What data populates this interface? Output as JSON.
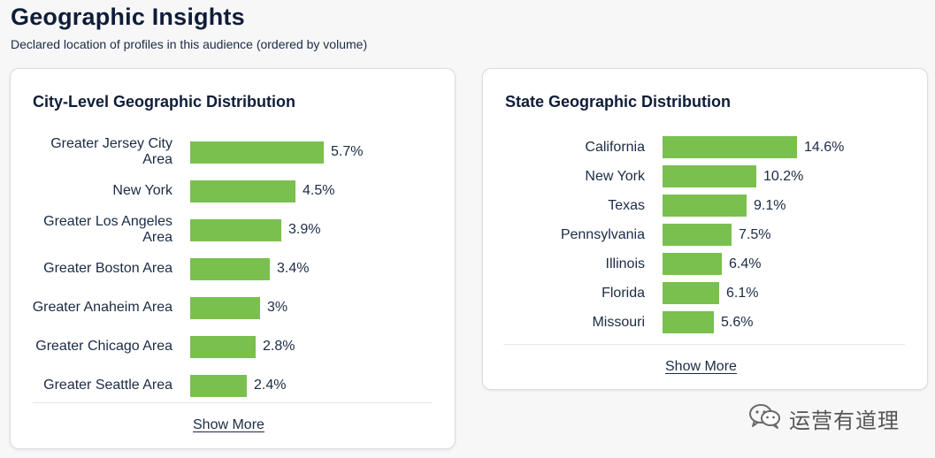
{
  "header": {
    "title": "Geographic Insights",
    "subtitle": "Declared location of profiles in this audience (ordered by volume)"
  },
  "city_card": {
    "title": "City-Level Geographic Distribution",
    "show_more": "Show More"
  },
  "state_card": {
    "title": "State Geographic Distribution",
    "show_more": "Show More"
  },
  "watermark": {
    "text": "运营有道理",
    "icon": "wechat-icon"
  },
  "colors": {
    "bar": "#79c04e",
    "title": "#0f1d38",
    "text": "#1b2b44"
  },
  "chart_data": [
    {
      "type": "bar",
      "orientation": "horizontal",
      "title": "City-Level Geographic Distribution",
      "categories": [
        "Greater Jersey City Area",
        "New York",
        "Greater Los Angeles Area",
        "Greater Boston Area",
        "Greater Anaheim Area",
        "Greater Chicago Area",
        "Greater Seattle Area"
      ],
      "values": [
        5.7,
        4.5,
        3.9,
        3.4,
        3,
        2.8,
        2.4
      ],
      "labels": [
        "5.7%",
        "4.5%",
        "3.9%",
        "3.4%",
        "3%",
        "2.8%",
        "2.4%"
      ],
      "grid": false
    },
    {
      "type": "bar",
      "orientation": "horizontal",
      "title": "State Geographic Distribution",
      "categories": [
        "California",
        "New York",
        "Texas",
        "Pennsylvania",
        "Illinois",
        "Florida",
        "Missouri"
      ],
      "values": [
        14.6,
        10.2,
        9.1,
        7.5,
        6.4,
        6.1,
        5.6
      ],
      "labels": [
        "14.6%",
        "10.2%",
        "9.1%",
        "7.5%",
        "6.4%",
        "6.1%",
        "5.6%"
      ],
      "grid": false
    }
  ]
}
